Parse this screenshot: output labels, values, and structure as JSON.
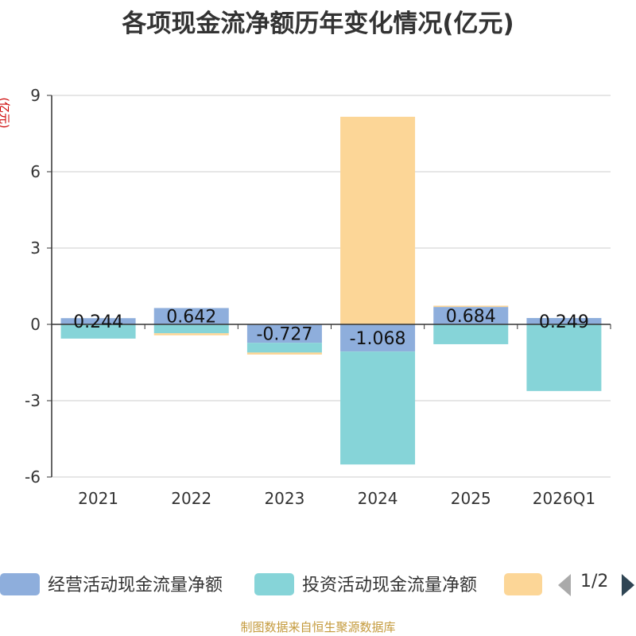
{
  "title": "各项现金流净额历年变化情况(亿元)",
  "footer": "制图数据来自恒生聚源数据库",
  "legend": {
    "items": [
      {
        "name": "经营活动现金流量净额",
        "color": "#8eaedc"
      },
      {
        "name": "投资活动现金流量净额",
        "color": "#86d4d8"
      },
      {
        "name": "",
        "color": "#fcd697"
      }
    ],
    "pager": "1/2"
  },
  "chart_data": {
    "type": "bar",
    "stacked": true,
    "title": "各项现金流净额历年变化情况(亿元)",
    "xlabel": "",
    "ylabel": "(亿元)",
    "ylim": [
      -6,
      9
    ],
    "yticks": [
      -6,
      -3,
      0,
      3,
      6,
      9
    ],
    "categories": [
      "2021",
      "2022",
      "2023",
      "2024",
      "2025",
      "2026Q1"
    ],
    "series": [
      {
        "name": "经营活动现金流量净额",
        "color": "#8eaedc",
        "values": [
          0.244,
          0.642,
          -0.727,
          -1.068,
          0.684,
          0.249
        ]
      },
      {
        "name": "投资活动现金流量净额",
        "color": "#86d4d8",
        "values": [
          -0.56,
          -0.35,
          -0.38,
          -4.44,
          -0.78,
          -2.62
        ]
      },
      {
        "name": "",
        "color": "#fcd697",
        "values": [
          0,
          -0.08,
          -0.08,
          8.16,
          0.05,
          0
        ]
      }
    ],
    "data_labels": [
      "0.244",
      "0.642",
      "-0.727",
      "-1.068",
      "0.684",
      "0.249"
    ]
  }
}
